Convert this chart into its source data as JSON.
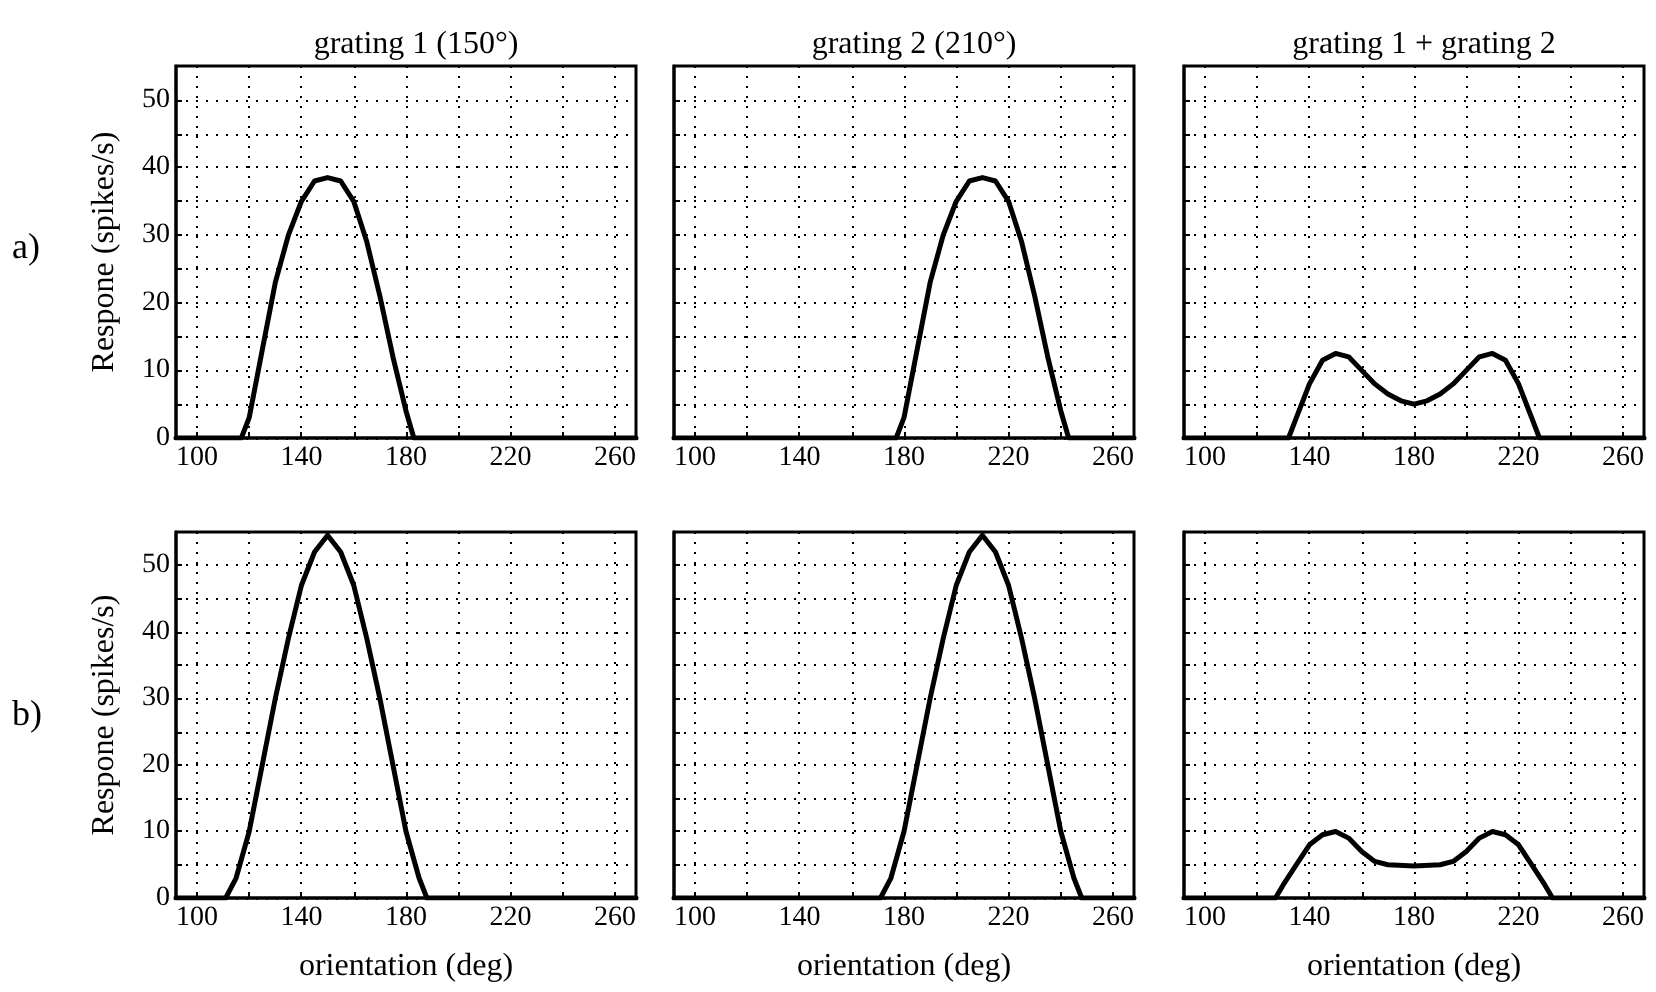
{
  "chart_data": [
    {
      "type": "line",
      "title": "grating 1 (150°)",
      "ylabel": "Respone (spikes/s)",
      "annotations": [
        "a)"
      ],
      "xlim": [
        92,
        268
      ],
      "ylim": [
        0,
        55
      ],
      "xticks": [
        100,
        {
          "value": 120,
          "label": null
        },
        140,
        {
          "value": 160,
          "label": null
        },
        180,
        {
          "value": 200,
          "label": null
        },
        220,
        {
          "value": 240,
          "label": null
        },
        260
      ],
      "yticks": [
        0,
        {
          "value": 5,
          "label": null
        },
        10,
        {
          "value": 15,
          "label": null
        },
        20,
        {
          "value": 25,
          "label": null
        },
        30,
        {
          "value": 35,
          "label": null
        },
        40,
        {
          "value": 45,
          "label": null
        },
        50
      ],
      "grid": true,
      "line_style": "solid",
      "series": [
        {
          "color": "#000000",
          "x": [
            92,
            117,
            120,
            125,
            130,
            135,
            140,
            145,
            150,
            155,
            160,
            165,
            170,
            175,
            180,
            183,
            268
          ],
          "values": [
            0,
            0,
            3,
            13,
            23,
            30,
            35,
            38,
            38.5,
            38,
            35,
            29,
            21,
            12,
            4,
            0,
            0
          ]
        }
      ]
    },
    {
      "type": "line",
      "title": "grating 2 (210°)",
      "xlim": [
        92,
        268
      ],
      "ylim": [
        0,
        55
      ],
      "xticks": [
        100,
        {
          "value": 120,
          "label": null
        },
        140,
        {
          "value": 160,
          "label": null
        },
        180,
        {
          "value": 200,
          "label": null
        },
        220,
        {
          "value": 240,
          "label": null
        },
        260
      ],
      "yticks": [
        0,
        {
          "value": 5,
          "label": null
        },
        10,
        {
          "value": 15,
          "label": null
        },
        20,
        {
          "value": 25,
          "label": null
        },
        30,
        {
          "value": 35,
          "label": null
        },
        40,
        {
          "value": 45,
          "label": null
        },
        50
      ],
      "grid": true,
      "line_style": "solid",
      "tick_labels": "x",
      "series": [
        {
          "color": "#000000",
          "x": [
            92,
            177,
            180,
            185,
            190,
            195,
            200,
            205,
            210,
            215,
            220,
            225,
            230,
            235,
            240,
            243,
            268
          ],
          "values": [
            0,
            0,
            3,
            13,
            23,
            30,
            35,
            38,
            38.5,
            38,
            35,
            29,
            21,
            12,
            4,
            0,
            0
          ]
        }
      ]
    },
    {
      "type": "line",
      "title": "grating 1 + grating 2",
      "xlim": [
        92,
        268
      ],
      "ylim": [
        0,
        55
      ],
      "xticks": [
        100,
        {
          "value": 120,
          "label": null
        },
        140,
        {
          "value": 160,
          "label": null
        },
        180,
        {
          "value": 200,
          "label": null
        },
        220,
        {
          "value": 240,
          "label": null
        },
        260
      ],
      "yticks": [
        0,
        {
          "value": 5,
          "label": null
        },
        10,
        {
          "value": 15,
          "label": null
        },
        20,
        {
          "value": 25,
          "label": null
        },
        30,
        {
          "value": 35,
          "label": null
        },
        40,
        {
          "value": 45,
          "label": null
        },
        50
      ],
      "grid": true,
      "line_style": "solid",
      "tick_labels": "x",
      "series": [
        {
          "color": "#000000",
          "x": [
            92,
            132,
            135,
            140,
            145,
            150,
            155,
            160,
            165,
            170,
            175,
            180,
            185,
            190,
            195,
            200,
            205,
            210,
            215,
            220,
            225,
            228,
            268
          ],
          "values": [
            0,
            0,
            3,
            8,
            11.5,
            12.5,
            12,
            10,
            8,
            6.5,
            5.5,
            5,
            5.5,
            6.5,
            8,
            10,
            12,
            12.5,
            11.5,
            8,
            3,
            0,
            0
          ]
        }
      ]
    },
    {
      "type": "line",
      "xlabel": "orientation (deg)",
      "ylabel": "Respone (spikes/s)",
      "annotations": [
        "b)"
      ],
      "xlim": [
        92,
        268
      ],
      "ylim": [
        0,
        55
      ],
      "xticks": [
        100,
        {
          "value": 120,
          "label": null
        },
        140,
        {
          "value": 160,
          "label": null
        },
        180,
        {
          "value": 200,
          "label": null
        },
        220,
        {
          "value": 240,
          "label": null
        },
        260
      ],
      "yticks": [
        0,
        {
          "value": 5,
          "label": null
        },
        10,
        {
          "value": 15,
          "label": null
        },
        20,
        {
          "value": 25,
          "label": null
        },
        30,
        {
          "value": 35,
          "label": null
        },
        40,
        {
          "value": 45,
          "label": null
        },
        50
      ],
      "grid": true,
      "line_style": "solid",
      "series": [
        {
          "color": "#000000",
          "x": [
            92,
            111,
            115,
            120,
            125,
            130,
            135,
            140,
            145,
            150,
            155,
            160,
            165,
            170,
            175,
            180,
            185,
            188,
            268
          ],
          "values": [
            0,
            0,
            3,
            10,
            20,
            30,
            39,
            47,
            52,
            54.5,
            52,
            47,
            39,
            30,
            20,
            10,
            3,
            0,
            0
          ]
        }
      ]
    },
    {
      "type": "line",
      "xlabel": "orientation (deg)",
      "xlim": [
        92,
        268
      ],
      "ylim": [
        0,
        55
      ],
      "xticks": [
        100,
        {
          "value": 120,
          "label": null
        },
        140,
        {
          "value": 160,
          "label": null
        },
        180,
        {
          "value": 200,
          "label": null
        },
        220,
        {
          "value": 240,
          "label": null
        },
        260
      ],
      "yticks": [
        0,
        {
          "value": 5,
          "label": null
        },
        10,
        {
          "value": 15,
          "label": null
        },
        20,
        {
          "value": 25,
          "label": null
        },
        30,
        {
          "value": 35,
          "label": null
        },
        40,
        {
          "value": 45,
          "label": null
        },
        50
      ],
      "grid": true,
      "line_style": "solid",
      "tick_labels": "x",
      "series": [
        {
          "color": "#000000",
          "x": [
            92,
            171,
            175,
            180,
            185,
            190,
            195,
            200,
            205,
            210,
            215,
            220,
            225,
            230,
            235,
            240,
            245,
            248,
            268
          ],
          "values": [
            0,
            0,
            3,
            10,
            20,
            30,
            39,
            47,
            52,
            54.5,
            52,
            47,
            39,
            30,
            20,
            10,
            3,
            0,
            0
          ]
        }
      ]
    },
    {
      "type": "line",
      "xlabel": "orientation (deg)",
      "xlim": [
        92,
        268
      ],
      "ylim": [
        0,
        55
      ],
      "xticks": [
        100,
        {
          "value": 120,
          "label": null
        },
        140,
        {
          "value": 160,
          "label": null
        },
        180,
        {
          "value": 200,
          "label": null
        },
        220,
        {
          "value": 240,
          "label": null
        },
        260
      ],
      "yticks": [
        0,
        {
          "value": 5,
          "label": null
        },
        10,
        {
          "value": 15,
          "label": null
        },
        20,
        {
          "value": 25,
          "label": null
        },
        30,
        {
          "value": 35,
          "label": null
        },
        40,
        {
          "value": 45,
          "label": null
        },
        50
      ],
      "grid": true,
      "line_style": "solid",
      "tick_labels": "x",
      "series": [
        {
          "color": "#000000",
          "x": [
            92,
            127,
            130,
            135,
            140,
            145,
            150,
            155,
            160,
            165,
            170,
            180,
            190,
            195,
            200,
            205,
            210,
            215,
            220,
            225,
            230,
            233,
            268
          ],
          "values": [
            0,
            0,
            2,
            5,
            8,
            9.5,
            10,
            9,
            7,
            5.5,
            5,
            4.8,
            5,
            5.5,
            7,
            9,
            10,
            9.5,
            8,
            5,
            2,
            0,
            0
          ]
        }
      ]
    }
  ]
}
